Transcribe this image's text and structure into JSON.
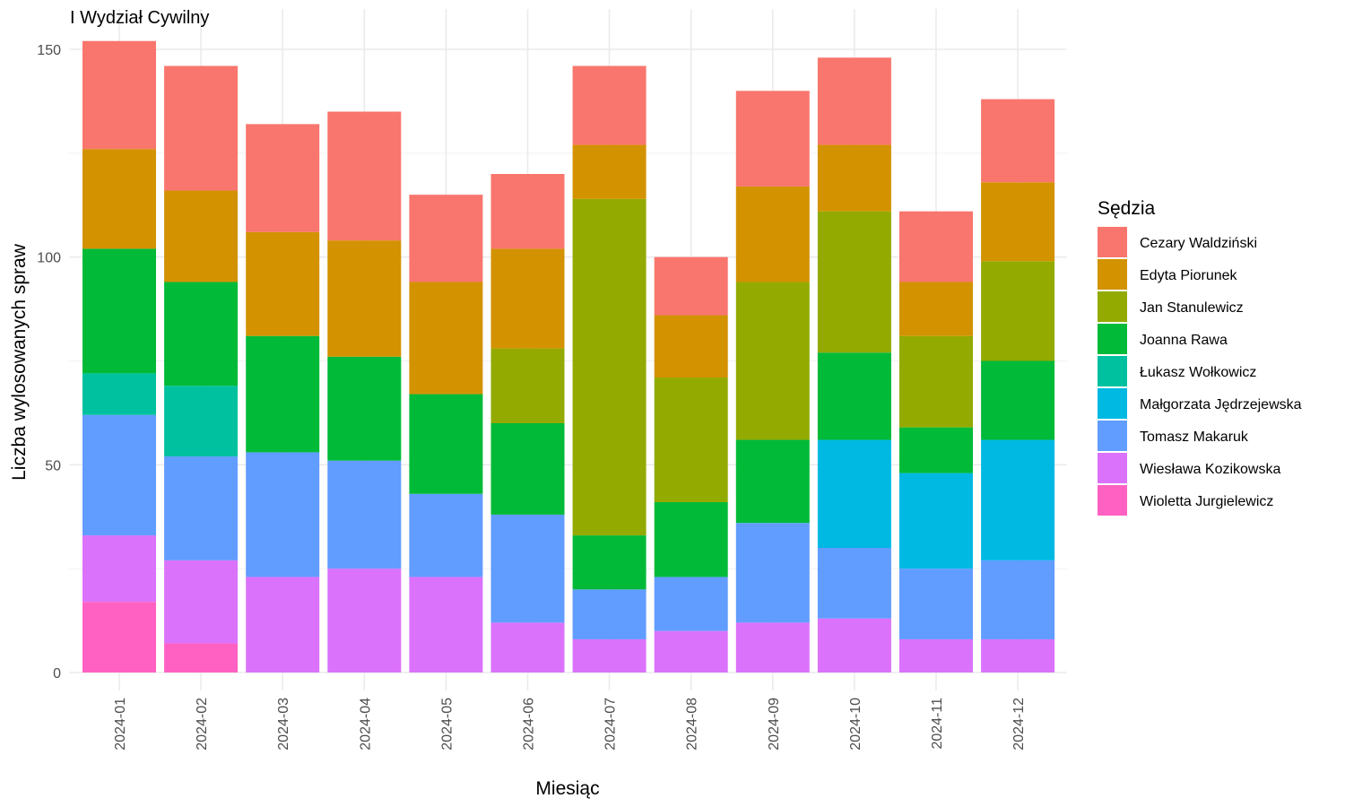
{
  "chart_data": {
    "type": "bar",
    "stacked": true,
    "title": "I Wydział Cywilny",
    "xlabel": "Miesiąc",
    "ylabel": "Liczba wylosowanych spraw",
    "ylim": [
      0,
      150
    ],
    "y_ticks": [
      0,
      50,
      100,
      150
    ],
    "grid": true,
    "legend_title": "Sędzia",
    "legend_position": "right",
    "categories": [
      "2024-01",
      "2024-02",
      "2024-03",
      "2024-04",
      "2024-05",
      "2024-06",
      "2024-07",
      "2024-08",
      "2024-09",
      "2024-10",
      "2024-11",
      "2024-12"
    ],
    "series": [
      {
        "name": "Cezary Waldziński",
        "color": "#F8766D",
        "values": [
          26,
          30,
          26,
          31,
          21,
          18,
          19,
          14,
          23,
          21,
          17,
          20
        ]
      },
      {
        "name": "Edyta Piorunek",
        "color": "#D39200",
        "values": [
          24,
          22,
          25,
          28,
          27,
          24,
          13,
          15,
          23,
          16,
          13,
          19
        ]
      },
      {
        "name": "Jan Stanulewicz",
        "color": "#93AA00",
        "values": [
          0,
          0,
          0,
          0,
          0,
          18,
          81,
          30,
          38,
          34,
          22,
          24
        ]
      },
      {
        "name": "Joanna Rawa",
        "color": "#00BA38",
        "values": [
          30,
          25,
          28,
          25,
          24,
          22,
          13,
          18,
          20,
          21,
          11,
          19
        ]
      },
      {
        "name": "Łukasz Wołkowicz",
        "color": "#00C19F",
        "values": [
          10,
          17,
          0,
          0,
          0,
          0,
          0,
          0,
          0,
          0,
          0,
          0
        ]
      },
      {
        "name": "Małgorzata Jędrzejewska",
        "color": "#00B9E3",
        "values": [
          0,
          0,
          0,
          0,
          0,
          0,
          0,
          0,
          0,
          26,
          23,
          29
        ]
      },
      {
        "name": "Tomasz Makaruk",
        "color": "#619CFF",
        "values": [
          29,
          25,
          30,
          26,
          20,
          26,
          12,
          13,
          24,
          17,
          17,
          19
        ]
      },
      {
        "name": "Wiesława Kozikowska",
        "color": "#DB72FB",
        "values": [
          16,
          20,
          23,
          25,
          23,
          12,
          8,
          10,
          12,
          13,
          8,
          8
        ]
      },
      {
        "name": "Wioletta Jurgielewicz",
        "color": "#FF61C3",
        "values": [
          17,
          7,
          0,
          0,
          0,
          0,
          0,
          0,
          0,
          0,
          0,
          0
        ]
      }
    ]
  }
}
